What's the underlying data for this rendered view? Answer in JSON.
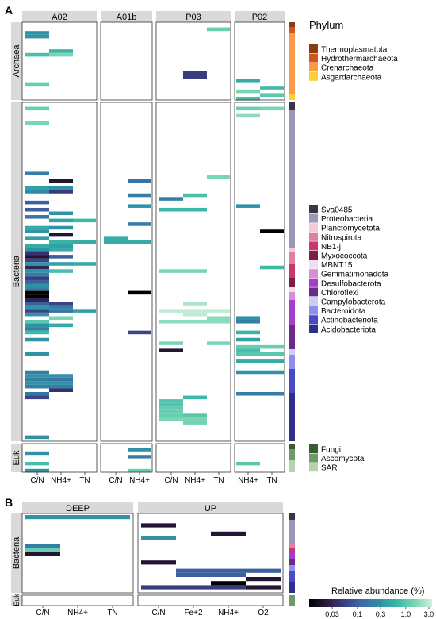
{
  "chart_data": [
    {
      "panel": "A",
      "type": "heatmap",
      "facets": [
        {
          "label": "A02",
          "columns": [
            "C/N",
            "NH4+",
            "TN"
          ]
        },
        {
          "label": "A01b",
          "columns": [
            "C/N",
            "NH4+"
          ]
        },
        {
          "label": "P03",
          "columns": [
            "C/N",
            "NH4+",
            "TN"
          ]
        },
        {
          "label": "P02",
          "columns": [
            "NH4+",
            "TN"
          ]
        }
      ],
      "row_groups": [
        "Archaea",
        "Bacteria",
        "Euk"
      ],
      "x_tick_labels": [
        "C/N",
        "NH4+",
        "TN",
        "C/N",
        "NH4+",
        "C/N",
        "NH4+",
        "TN",
        "NH4+",
        "TN"
      ],
      "legend": {
        "title": "Phylum",
        "groups": [
          {
            "items": [
              {
                "name": "Thermoplasmatota",
                "color": "#8a3a0e"
              },
              {
                "name": "Hydrothermarchaeota",
                "color": "#d4561a"
              },
              {
                "name": "Crenarchaeota",
                "color": "#fb9a4a"
              },
              {
                "name": "Asgardarchaeota",
                "color": "#fdd033"
              }
            ]
          },
          {
            "items": [
              {
                "name": "Sva0485",
                "color": "#3a3648"
              },
              {
                "name": "Proteobacteria",
                "color": "#9e96b8"
              },
              {
                "name": "Planctomycetota",
                "color": "#f4c9d8"
              },
              {
                "name": "Nitrospirota",
                "color": "#de7fa4"
              },
              {
                "name": "NB1-j",
                "color": "#c9366e"
              },
              {
                "name": "Myxococcota",
                "color": "#7a1f45"
              },
              {
                "name": "MBNT15",
                "color": "#f3dcf0"
              },
              {
                "name": "Gemmatimonadota",
                "color": "#d78ed8"
              },
              {
                "name": "Desulfobacterota",
                "color": "#a63ccc"
              },
              {
                "name": "Chloroflexi",
                "color": "#6a2a8a"
              },
              {
                "name": "Campylobacterota",
                "color": "#ccccf4"
              },
              {
                "name": "Bacteroidota",
                "color": "#8e8ef0"
              },
              {
                "name": "Actinobacteriota",
                "color": "#4a4ac4"
              },
              {
                "name": "Acidobacteriota",
                "color": "#302f8c"
              }
            ]
          },
          {
            "items": [
              {
                "name": "Fungi",
                "color": "#3b5a36"
              },
              {
                "name": "Ascomycota",
                "color": "#6f9a66"
              },
              {
                "name": "SAR",
                "color": "#b8d2b0"
              }
            ]
          }
        ]
      },
      "cells": [
        {
          "col": 0,
          "row": 2,
          "v": 0.3
        },
        {
          "col": 0,
          "row": 3,
          "v": 0.3
        },
        {
          "col": 0,
          "row": 8,
          "v": 0.8
        },
        {
          "col": 1,
          "row": 7,
          "v": 0.6
        },
        {
          "col": 1,
          "row": 8,
          "v": 1.5
        },
        {
          "col": 0,
          "row": 16,
          "v": 1.2
        },
        {
          "col": 0,
          "row": 22,
          "v": 1.2
        },
        {
          "col": 0,
          "row": 26,
          "v": 1.5
        },
        {
          "col": 7,
          "row": 1,
          "v": 1.2
        },
        {
          "col": 6,
          "row": 13,
          "v": 0.05
        },
        {
          "col": 6,
          "row": 14,
          "v": 0.05
        },
        {
          "col": 8,
          "row": 15,
          "v": 0.5
        },
        {
          "col": 9,
          "row": 17,
          "v": 0.7
        },
        {
          "col": 8,
          "row": 18,
          "v": 1.5
        },
        {
          "col": 9,
          "row": 19,
          "v": 1.0
        },
        {
          "col": 8,
          "row": 20,
          "v": 0.8
        },
        {
          "col": 8,
          "row": 22,
          "v": 1.2
        },
        {
          "col": 9,
          "row": 22,
          "v": 1.5
        },
        {
          "col": 8,
          "row": 24,
          "v": 1.8
        },
        {
          "col": 0,
          "row": 40,
          "v": 0.2
        },
        {
          "col": 1,
          "row": 42,
          "v": 0.02
        },
        {
          "col": 0,
          "row": 44,
          "v": 0.4
        },
        {
          "col": 1,
          "row": 44,
          "v": 0.3
        },
        {
          "col": 0,
          "row": 45,
          "v": 0.25
        },
        {
          "col": 1,
          "row": 45,
          "v": 0.05
        },
        {
          "col": 0,
          "row": 48,
          "v": 0.1
        },
        {
          "col": 0,
          "row": 50,
          "v": 0.1
        },
        {
          "col": 1,
          "row": 51,
          "v": 0.3
        },
        {
          "col": 0,
          "row": 52,
          "v": 0.15
        },
        {
          "col": 1,
          "row": 53,
          "v": 0.4
        },
        {
          "col": 2,
          "row": 53,
          "v": 0.7
        },
        {
          "col": 0,
          "row": 55,
          "v": 0.5
        },
        {
          "col": 1,
          "row": 55,
          "v": 0.3
        },
        {
          "col": 0,
          "row": 56,
          "v": 0.3
        },
        {
          "col": 1,
          "row": 57,
          "v": 0.02
        },
        {
          "col": 0,
          "row": 58,
          "v": 0.4
        },
        {
          "col": 1,
          "row": 59,
          "v": 0.6
        },
        {
          "col": 2,
          "row": 59,
          "v": 0.5
        },
        {
          "col": 0,
          "row": 60,
          "v": 0.5
        },
        {
          "col": 1,
          "row": 60,
          "v": 0.4
        },
        {
          "col": 0,
          "row": 61,
          "v": 0.3
        },
        {
          "col": 1,
          "row": 61,
          "v": 0.5
        },
        {
          "col": 0,
          "row": 62,
          "v": 0.04
        },
        {
          "col": 0,
          "row": 63,
          "v": 0.02
        },
        {
          "col": 1,
          "row": 63,
          "v": 0.1
        },
        {
          "col": 0,
          "row": 64,
          "v": 0.06
        },
        {
          "col": 0,
          "row": 65,
          "v": 0.3
        },
        {
          "col": 1,
          "row": 65,
          "v": 0.4
        },
        {
          "col": 2,
          "row": 65,
          "v": 0.5
        },
        {
          "col": 0,
          "row": 66,
          "v": 0.03
        },
        {
          "col": 0,
          "row": 67,
          "v": 0.3
        },
        {
          "col": 1,
          "row": 67,
          "v": 0.8
        },
        {
          "col": 0,
          "row": 68,
          "v": 0.2
        },
        {
          "col": 0,
          "row": 69,
          "v": 0.05
        },
        {
          "col": 0,
          "row": 70,
          "v": 0.1
        },
        {
          "col": 0,
          "row": 71,
          "v": 0.3
        },
        {
          "col": 0,
          "row": 72,
          "v": 0.2
        },
        {
          "col": 0,
          "row": 73,
          "v": 0.01
        },
        {
          "col": 0,
          "row": 74,
          "v": 0.01
        },
        {
          "col": 0,
          "row": 75,
          "v": 0.03
        },
        {
          "col": 0,
          "row": 76,
          "v": 0.1
        },
        {
          "col": 1,
          "row": 76,
          "v": 0.06
        },
        {
          "col": 0,
          "row": 77,
          "v": 0.3
        },
        {
          "col": 1,
          "row": 77,
          "v": 0.2
        },
        {
          "col": 0,
          "row": 78,
          "v": 0.06
        },
        {
          "col": 1,
          "row": 78,
          "v": 0.15
        },
        {
          "col": 2,
          "row": 78,
          "v": 0.4
        },
        {
          "col": 0,
          "row": 79,
          "v": 0.3
        },
        {
          "col": 1,
          "row": 80,
          "v": 1.5
        },
        {
          "col": 0,
          "row": 81,
          "v": 1.0
        },
        {
          "col": 0,
          "row": 82,
          "v": 0.3
        },
        {
          "col": 1,
          "row": 82,
          "v": 0.5
        },
        {
          "col": 0,
          "row": 83,
          "v": 0.2
        },
        {
          "col": 0,
          "row": 84,
          "v": 0.7
        },
        {
          "col": 0,
          "row": 86,
          "v": 0.3
        },
        {
          "col": 0,
          "row": 90,
          "v": 0.3
        },
        {
          "col": 0,
          "row": 95,
          "v": 0.2
        },
        {
          "col": 0,
          "row": 96,
          "v": 0.3
        },
        {
          "col": 1,
          "row": 96,
          "v": 0.3
        },
        {
          "col": 0,
          "row": 97,
          "v": 0.2
        },
        {
          "col": 1,
          "row": 97,
          "v": 0.15
        },
        {
          "col": 0,
          "row": 98,
          "v": 0.3
        },
        {
          "col": 1,
          "row": 98,
          "v": 0.3
        },
        {
          "col": 0,
          "row": 99,
          "v": 0.2
        },
        {
          "col": 1,
          "row": 99,
          "v": 0.2
        },
        {
          "col": 1,
          "row": 100,
          "v": 0.04
        },
        {
          "col": 0,
          "row": 101,
          "v": 0.15
        },
        {
          "col": 0,
          "row": 102,
          "v": 0.06
        },
        {
          "col": 0,
          "row": 113,
          "v": 0.3
        },
        {
          "col": 3,
          "row": 58,
          "v": 0.5
        },
        {
          "col": 3,
          "row": 59,
          "v": 0.5
        },
        {
          "col": 4,
          "row": 59,
          "v": 0.5
        },
        {
          "col": 4,
          "row": 42,
          "v": 0.15
        },
        {
          "col": 4,
          "row": 46,
          "v": 0.2
        },
        {
          "col": 4,
          "row": 49,
          "v": 0.3
        },
        {
          "col": 4,
          "row": 54,
          "v": 0.2
        },
        {
          "col": 4,
          "row": 73,
          "v": 0.01
        },
        {
          "col": 4,
          "row": 84,
          "v": 0.06
        },
        {
          "col": 7,
          "row": 41,
          "v": 1.5
        },
        {
          "col": 6,
          "row": 46,
          "v": 0.8
        },
        {
          "col": 5,
          "row": 47,
          "v": 0.2
        },
        {
          "col": 5,
          "row": 50,
          "v": 0.7
        },
        {
          "col": 6,
          "row": 50,
          "v": 0.7
        },
        {
          "col": 5,
          "row": 67,
          "v": 1.5
        },
        {
          "col": 6,
          "row": 67,
          "v": 1.5
        },
        {
          "col": 6,
          "row": 76,
          "v": 2.5
        },
        {
          "col": 5,
          "row": 78,
          "v": 3.0
        },
        {
          "col": 6,
          "row": 78,
          "v": 3.0
        },
        {
          "col": 7,
          "row": 78,
          "v": 3.0
        },
        {
          "col": 6,
          "row": 79,
          "v": 3.0
        },
        {
          "col": 7,
          "row": 80,
          "v": 1.8
        },
        {
          "col": 5,
          "row": 81,
          "v": 1.8
        },
        {
          "col": 6,
          "row": 81,
          "v": 1.8
        },
        {
          "col": 7,
          "row": 81,
          "v": 1.8
        },
        {
          "col": 5,
          "row": 87,
          "v": 1.5
        },
        {
          "col": 7,
          "row": 87,
          "v": 1.5
        },
        {
          "col": 5,
          "row": 89,
          "v": 0.02
        },
        {
          "col": 6,
          "row": 102,
          "v": 0.7
        },
        {
          "col": 5,
          "row": 103,
          "v": 0.9
        },
        {
          "col": 5,
          "row": 104,
          "v": 0.9
        },
        {
          "col": 5,
          "row": 105,
          "v": 1.1
        },
        {
          "col": 5,
          "row": 106,
          "v": 1.2
        },
        {
          "col": 5,
          "row": 107,
          "v": 1.2
        },
        {
          "col": 6,
          "row": 107,
          "v": 1.0
        },
        {
          "col": 5,
          "row": 108,
          "v": 1.5
        },
        {
          "col": 6,
          "row": 108,
          "v": 1.5
        },
        {
          "col": 6,
          "row": 109,
          "v": 1.4
        },
        {
          "col": 8,
          "row": 49,
          "v": 0.3
        },
        {
          "col": 9,
          "row": 56,
          "v": 0.01
        },
        {
          "col": 9,
          "row": 66,
          "v": 0.7
        },
        {
          "col": 8,
          "row": 80,
          "v": 0.3
        },
        {
          "col": 8,
          "row": 81,
          "v": 0.2
        },
        {
          "col": 8,
          "row": 84,
          "v": 0.6
        },
        {
          "col": 8,
          "row": 86,
          "v": 0.4
        },
        {
          "col": 8,
          "row": 88,
          "v": 1.2
        },
        {
          "col": 9,
          "row": 88,
          "v": 1.2
        },
        {
          "col": 8,
          "row": 89,
          "v": 0.8
        },
        {
          "col": 8,
          "row": 90,
          "v": 1.0
        },
        {
          "col": 9,
          "row": 90,
          "v": 1.0
        },
        {
          "col": 8,
          "row": 92,
          "v": 0.5
        },
        {
          "col": 9,
          "row": 92,
          "v": 0.5
        },
        {
          "col": 8,
          "row": 95,
          "v": 0.3
        },
        {
          "col": 9,
          "row": 95,
          "v": 0.3
        },
        {
          "col": 8,
          "row": 101,
          "v": 0.2
        },
        {
          "col": 9,
          "row": 101,
          "v": 0.2
        },
        {
          "col": 0,
          "row": 117,
          "v": 0.3
        },
        {
          "col": 0,
          "row": 120,
          "v": 0.8
        },
        {
          "col": 0,
          "row": 122,
          "v": 0.3
        },
        {
          "col": 4,
          "row": 116,
          "v": 0.3
        },
        {
          "col": 4,
          "row": 118,
          "v": 0.2
        },
        {
          "col": 4,
          "row": 122,
          "v": 1.2
        },
        {
          "col": 8,
          "row": 120,
          "v": 1.0
        }
      ]
    },
    {
      "panel": "B",
      "type": "heatmap",
      "facets": [
        {
          "label": "DEEP",
          "columns": [
            "C/N",
            "NH4+",
            "TN"
          ]
        },
        {
          "label": "UP",
          "columns": [
            "C/N",
            "Fe+2",
            "NH4+",
            "O2"
          ]
        }
      ],
      "row_groups": [
        "Bacteria",
        "Euk"
      ],
      "x_tick_labels": [
        "C/N",
        "NH4+",
        "TN",
        "C/N",
        "Fe+2",
        "NH4+",
        "O2"
      ],
      "cells": [
        {
          "col": 0,
          "row": 0,
          "v": 0.3
        },
        {
          "col": 1,
          "row": 0,
          "v": 0.3
        },
        {
          "col": 2,
          "row": 0,
          "v": 0.3
        },
        {
          "col": 0,
          "row": 7,
          "v": 0.2
        },
        {
          "col": 0,
          "row": 8,
          "v": 1.2
        },
        {
          "col": 0,
          "row": 9,
          "v": 0.02
        },
        {
          "col": 3,
          "row": 2,
          "v": 0.02
        },
        {
          "col": 5,
          "row": 4,
          "v": 0.02
        },
        {
          "col": 3,
          "row": 5,
          "v": 0.3
        },
        {
          "col": 3,
          "row": 11,
          "v": 0.02
        },
        {
          "col": 4,
          "row": 13,
          "v": 0.1
        },
        {
          "col": 5,
          "row": 13,
          "v": 0.1
        },
        {
          "col": 6,
          "row": 13,
          "v": 0.1
        },
        {
          "col": 4,
          "row": 14,
          "v": 0.1
        },
        {
          "col": 5,
          "row": 14,
          "v": 0.1
        },
        {
          "col": 6,
          "row": 15,
          "v": 0.02
        },
        {
          "col": 5,
          "row": 16,
          "v": 0.01
        },
        {
          "col": 3,
          "row": 17,
          "v": 0.05
        },
        {
          "col": 4,
          "row": 17,
          "v": 0.05
        },
        {
          "col": 5,
          "row": 17,
          "v": 0.05
        },
        {
          "col": 6,
          "row": 17,
          "v": 0.02
        }
      ],
      "colorbar": {
        "title": "Relative abundance (%)",
        "scale": "log",
        "ticks": [
          "0.03",
          "0.1",
          "0.3",
          "1.0",
          "3.0"
        ],
        "tick_values": [
          0.03,
          0.1,
          0.3,
          1.0,
          3.0
        ],
        "colors": [
          "#000000",
          "#2a1b3d",
          "#3b3e82",
          "#3d6aa8",
          "#2f8fa5",
          "#38b8a6",
          "#7ad6b5",
          "#cfeedd"
        ]
      }
    }
  ],
  "text": {
    "panel_a_tag": "A",
    "panel_b_tag": "B",
    "a_strips": [
      "A02",
      "A01b",
      "P03",
      "P02"
    ],
    "a_rows": [
      "Archaea",
      "Bacteria",
      "Euk"
    ],
    "b_strips": [
      "DEEP",
      "UP"
    ],
    "b_rows": [
      "Bacteria",
      "Euk"
    ],
    "legend_title": "Phylum",
    "cbar_title": "Relative abundance (%)"
  }
}
